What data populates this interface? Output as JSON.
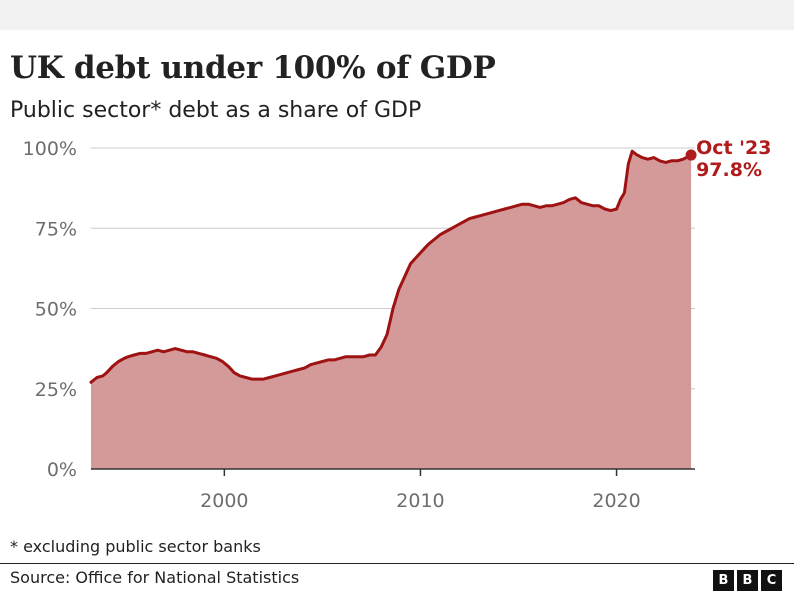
{
  "header": {
    "title": "UK debt under 100% of GDP",
    "subtitle": "Public sector* debt as a share of GDP"
  },
  "footer": {
    "footnote": "* excluding public sector banks",
    "source": "Source: Office for National Statistics",
    "logo_letters": [
      "B",
      "B",
      "C"
    ]
  },
  "colors": {
    "line": "#9e1212",
    "area": "#d49a9a",
    "annotation": "#b01b1b",
    "grid": "#cccccc",
    "axis": "#333333"
  },
  "chart_data": {
    "type": "area",
    "title": "UK debt under 100% of GDP",
    "subtitle": "Public sector* debt as a share of GDP",
    "xlabel": "",
    "ylabel": "",
    "x_ticks": [
      "2000",
      "2010",
      "2020"
    ],
    "y_ticks": [
      "0%",
      "25%",
      "50%",
      "75%",
      "100%"
    ],
    "xlim": [
      1993.2,
      2024.0
    ],
    "ylim": [
      0,
      100
    ],
    "grid": true,
    "legend": "none",
    "annotation": {
      "label": "Oct '23",
      "value_label": "97.8%",
      "x": 2023.8,
      "y": 97.8
    },
    "series": [
      {
        "x": [
          1993.2,
          1993.5,
          1993.8,
          1994.0,
          1994.3,
          1994.6,
          1994.9,
          1995.1,
          1995.4,
          1995.7,
          1996.0,
          1996.3,
          1996.6,
          1996.9,
          1997.2,
          1997.5,
          1997.8,
          1998.1,
          1998.4,
          1998.7,
          1999.0,
          1999.3,
          1999.6,
          1999.9,
          2000.2,
          2000.5,
          2000.8,
          2001.1,
          2001.4,
          2001.7,
          2002.0,
          2002.3,
          2002.6,
          2002.9,
          2003.2,
          2003.5,
          2003.8,
          2004.1,
          2004.4,
          2004.7,
          2005.0,
          2005.3,
          2005.6,
          2005.9,
          2006.2,
          2006.5,
          2006.8,
          2007.1,
          2007.4,
          2007.7,
          2008.0,
          2008.3,
          2008.6,
          2008.9,
          2009.2,
          2009.5,
          2009.8,
          2010.1,
          2010.4,
          2010.7,
          2011.0,
          2011.3,
          2011.6,
          2011.9,
          2012.2,
          2012.5,
          2012.8,
          2013.1,
          2013.4,
          2013.7,
          2014.0,
          2014.3,
          2014.6,
          2014.9,
          2015.2,
          2015.5,
          2015.8,
          2016.1,
          2016.4,
          2016.7,
          2017.0,
          2017.3,
          2017.6,
          2017.9,
          2018.2,
          2018.5,
          2018.8,
          2019.1,
          2019.4,
          2019.7,
          2020.0,
          2020.2,
          2020.4,
          2020.6,
          2020.8,
          2021.0,
          2021.3,
          2021.6,
          2021.9,
          2022.2,
          2022.5,
          2022.8,
          2023.1,
          2023.4,
          2023.8
        ],
        "values": [
          27,
          28.5,
          29,
          30,
          32,
          33.5,
          34.5,
          35,
          35.5,
          36,
          36,
          36.5,
          37,
          36.5,
          37,
          37.5,
          37,
          36.5,
          36.5,
          36,
          35.5,
          35,
          34.5,
          33.5,
          32,
          30,
          29,
          28.5,
          28,
          28,
          28,
          28.5,
          29,
          29.5,
          30,
          30.5,
          31,
          31.5,
          32.5,
          33,
          33.5,
          34,
          34,
          34.5,
          35,
          35,
          35,
          35,
          35.5,
          35.5,
          38,
          42,
          50,
          56,
          60,
          64,
          66,
          68,
          70,
          71.5,
          73,
          74,
          75,
          76,
          77,
          78,
          78.5,
          79,
          79.5,
          80,
          80.5,
          81,
          81.5,
          82,
          82.5,
          82.5,
          82,
          81.5,
          82,
          82,
          82.5,
          83,
          84,
          84.5,
          83,
          82.5,
          82,
          82,
          81,
          80.5,
          81,
          84,
          86,
          95,
          99,
          98,
          97,
          96.5,
          97,
          96,
          95.5,
          96,
          96,
          96.5,
          97.8
        ]
      }
    ]
  }
}
